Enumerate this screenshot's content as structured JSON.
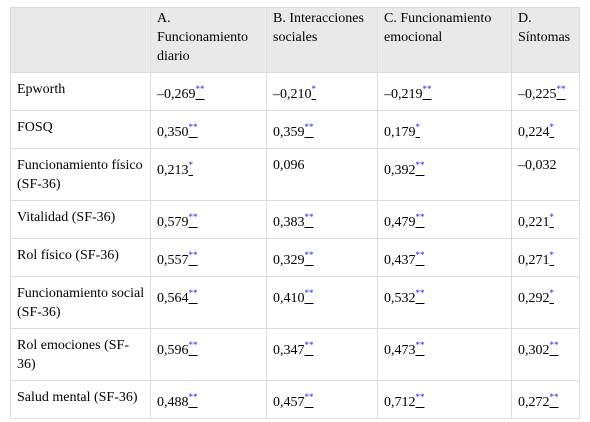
{
  "table": {
    "header": [
      "A. Funcionamiento diario",
      "B. Interacciones sociales",
      "C. Funcionamiento emocional",
      "D. Síntomas"
    ],
    "rows": [
      {
        "label": "Epworth",
        "cells": [
          {
            "value": "–0,269",
            "sig": "**"
          },
          {
            "value": "–0,210",
            "sig": "*"
          },
          {
            "value": "–0,219",
            "sig": "**"
          },
          {
            "value": "–0,225",
            "sig": "**"
          }
        ]
      },
      {
        "label": "FOSQ",
        "cells": [
          {
            "value": "0,350",
            "sig": "**"
          },
          {
            "value": "0,359",
            "sig": "**"
          },
          {
            "value": "0,179",
            "sig": "*"
          },
          {
            "value": "0,224",
            "sig": "*"
          }
        ]
      },
      {
        "label": "Funcionamiento físico (SF-36)",
        "cells": [
          {
            "value": "0,213",
            "sig": "*"
          },
          {
            "value": "0,096"
          },
          {
            "value": "0,392",
            "sig": "**"
          },
          {
            "value": "–0,032"
          }
        ]
      },
      {
        "label": "Vitalidad (SF-36)",
        "cells": [
          {
            "value": "0,579",
            "sig": "**"
          },
          {
            "value": "0,383",
            "sig": "**"
          },
          {
            "value": "0,479",
            "sig": "**"
          },
          {
            "value": "0,221",
            "sig": "*"
          }
        ]
      },
      {
        "label": "Rol físico (SF-36)",
        "cells": [
          {
            "value": "0,557",
            "sig": "**"
          },
          {
            "value": "0,329",
            "sig": "**"
          },
          {
            "value": "0,437",
            "sig": "**"
          },
          {
            "value": "0,271",
            "sig": "*"
          }
        ]
      },
      {
        "label": "Funcionamiento social (SF-36)",
        "cells": [
          {
            "value": "0,564",
            "sig": "**"
          },
          {
            "value": "0,410",
            "sig": "**"
          },
          {
            "value": "0,532",
            "sig": "**"
          },
          {
            "value": "0,292",
            "sig": "*"
          }
        ]
      },
      {
        "label": "Rol emociones (SF-36)",
        "cells": [
          {
            "value": "0,596",
            "sig": "**"
          },
          {
            "value": "0,347",
            "sig": "**"
          },
          {
            "value": "0,473",
            "sig": "**"
          },
          {
            "value": "0,302",
            "sig": "**"
          }
        ]
      },
      {
        "label": "Salud mental (SF-36)",
        "cells": [
          {
            "value": "0,488",
            "sig": "**"
          },
          {
            "value": "0,457",
            "sig": "**"
          },
          {
            "value": "0,712",
            "sig": "**"
          },
          {
            "value": "0,272",
            "sig": "**"
          }
        ]
      }
    ]
  }
}
